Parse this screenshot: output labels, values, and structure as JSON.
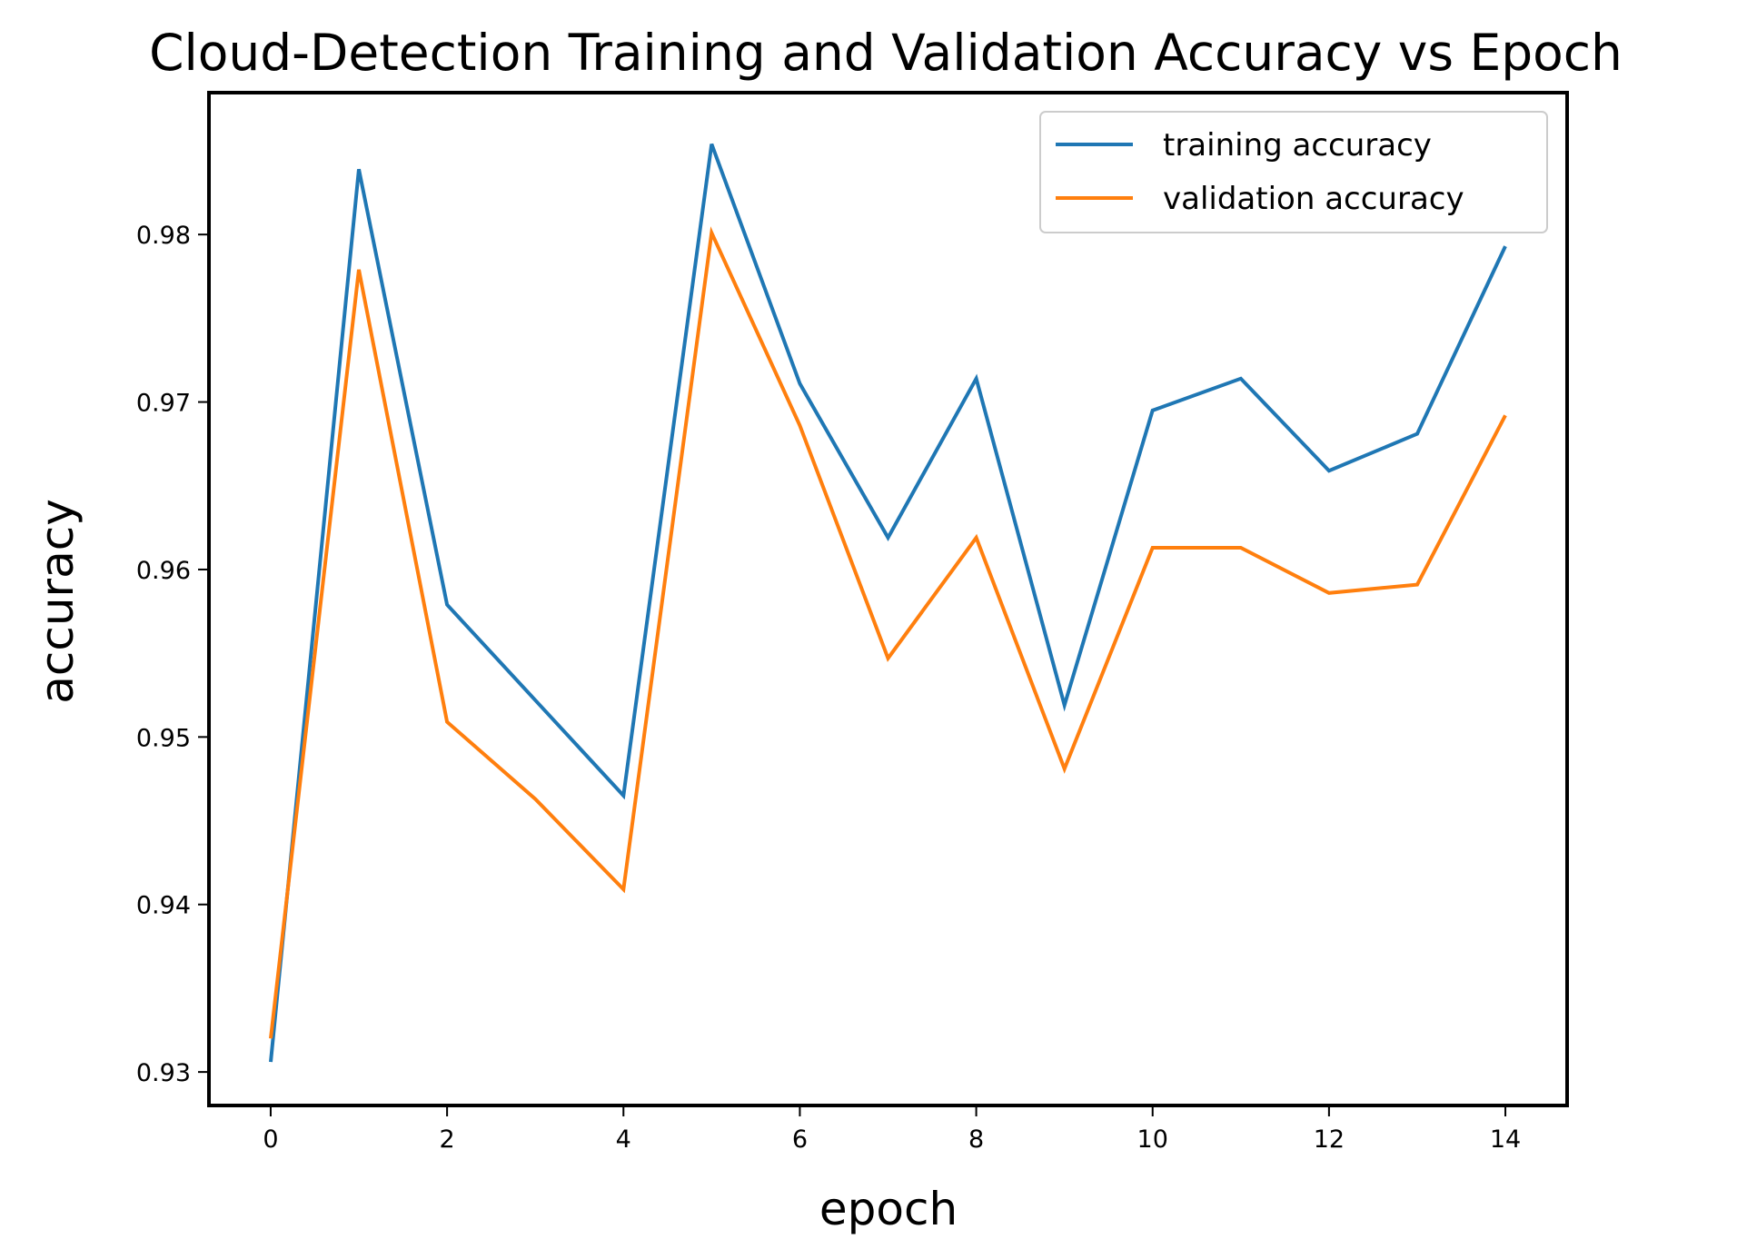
{
  "chart_data": {
    "type": "line",
    "title": "Cloud-Detection Training and Validation Accuracy vs Epoch",
    "xlabel": "epoch",
    "ylabel": "accuracy",
    "xlim": [
      -0.7,
      14.7
    ],
    "ylim": [
      0.928,
      0.98847
    ],
    "x_ticks": [
      0,
      2,
      4,
      6,
      8,
      10,
      12,
      14
    ],
    "x_tick_labels": [
      "0",
      "2",
      "4",
      "6",
      "8",
      "10",
      "12",
      "14"
    ],
    "y_ticks": [
      0.93,
      0.94,
      0.95,
      0.96,
      0.97,
      0.98
    ],
    "y_tick_labels": [
      "0.93",
      "0.94",
      "0.95",
      "0.96",
      "0.97",
      "0.98"
    ],
    "grid": false,
    "legend_position": "top-right",
    "x": [
      0,
      1,
      2,
      3,
      4,
      5,
      6,
      7,
      8,
      9,
      10,
      11,
      12,
      13,
      14
    ],
    "series": [
      {
        "name": "training accuracy",
        "color": "#1f77b4",
        "values": [
          0.9306,
          0.9839,
          0.9579,
          0.9522,
          0.9465,
          0.9854,
          0.9711,
          0.9619,
          0.9714,
          0.9519,
          0.9695,
          0.9714,
          0.9659,
          0.9681,
          0.9793
        ]
      },
      {
        "name": "validation accuracy",
        "color": "#ff7f0e",
        "values": [
          0.932,
          0.9779,
          0.9509,
          0.9463,
          0.9409,
          0.9801,
          0.9686,
          0.9547,
          0.9619,
          0.9481,
          0.9613,
          0.9613,
          0.9586,
          0.9591,
          0.9692
        ]
      }
    ]
  }
}
